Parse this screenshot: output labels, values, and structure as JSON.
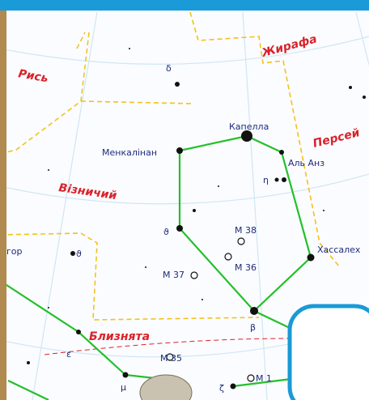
{
  "constellations": [
    "Жирафа",
    "Рись",
    "Персей",
    "Візничий",
    "Близнята"
  ],
  "labels": [
    "Капелла",
    "Менкалінан",
    "Аль Анз",
    "η",
    "δ",
    "ϑ",
    "M 38",
    "M 36",
    "M 37",
    "Хассалех",
    "β",
    "ε",
    "M 35",
    "μ",
    "ζ",
    "M 1",
    "гор",
    "ϑ"
  ]
}
